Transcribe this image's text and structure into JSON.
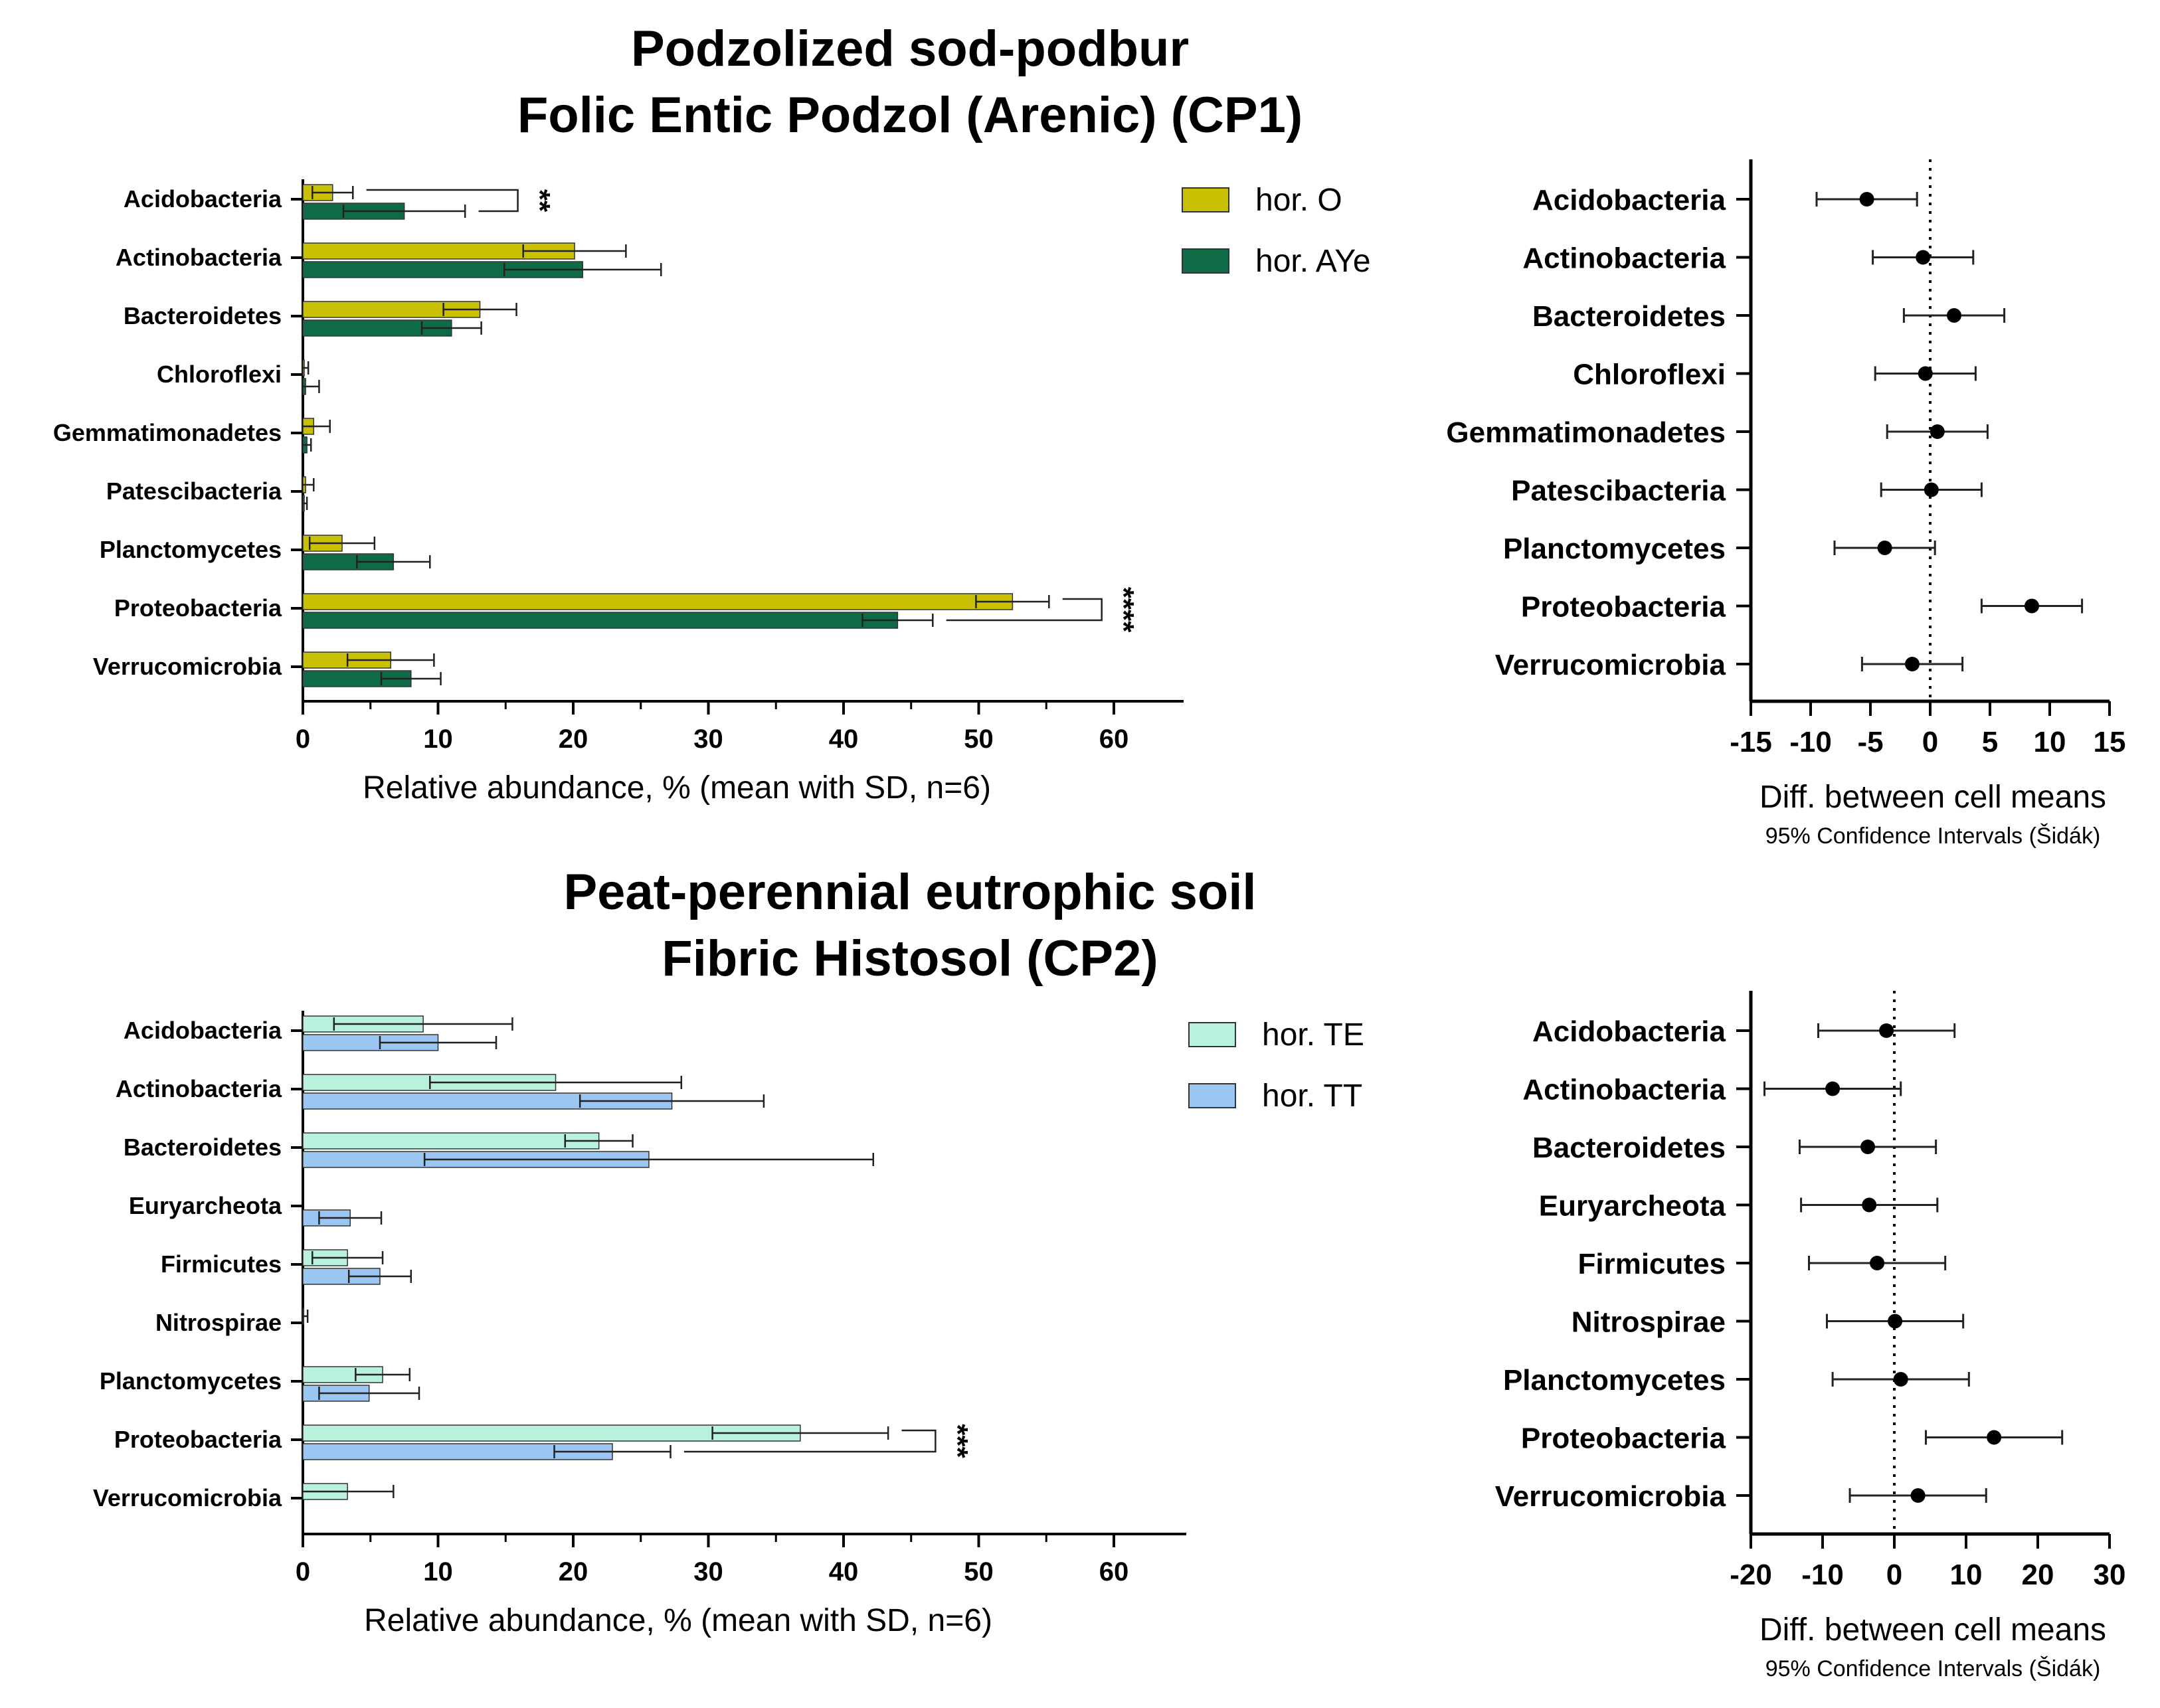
{
  "titles": {
    "top_line1": "Podzolized sod-podbur",
    "top_line2": "Folic Entic Podzol (Arenic) (CP1)",
    "bottom_line1": "Peat-perennial eutrophic soil",
    "bottom_line2": "Fibric Histosol (CP2)"
  },
  "colors": {
    "horO": "#c8c000",
    "horAYe": "#0e6b45",
    "horTE": "#b8f2dc",
    "horTT": "#9cc6f2"
  },
  "chart_data": [
    {
      "id": "cp1_bar",
      "type": "bar",
      "orientation": "horizontal",
      "categories": [
        "Acidobacteria",
        "Actinobacteria",
        "Bacteroidetes",
        "Chloroflexi",
        "Gemmatimonadetes",
        "Patescibacteria",
        "Planctomycetes",
        "Proteobacteria",
        "Verrucomicrobia"
      ],
      "series": [
        {
          "name": "hor. O",
          "color_key": "horO",
          "values": [
            2.2,
            20.1,
            13.1,
            0.1,
            0.8,
            0.2,
            2.9,
            52.5,
            6.5
          ],
          "sd": [
            1.5,
            3.8,
            2.7,
            0.3,
            1.2,
            0.6,
            2.4,
            2.7,
            3.2
          ]
        },
        {
          "name": "hor. AYe",
          "color_key": "horAYe",
          "values": [
            7.5,
            20.7,
            11.0,
            0.2,
            0.3,
            0.1,
            6.7,
            44.0,
            8.0
          ],
          "sd": [
            4.5,
            5.8,
            2.2,
            1.0,
            0.3,
            0.2,
            2.7,
            2.6,
            2.2
          ]
        }
      ],
      "significance": [
        {
          "category": "Acidobacteria",
          "label": "**"
        },
        {
          "category": "Proteobacteria",
          "label": "****"
        }
      ],
      "xlabel": "Relative abundance, % (mean with SD, n=6)",
      "xlim": [
        0,
        65
      ],
      "xticks": [
        0,
        10,
        20,
        30,
        40,
        50,
        60
      ]
    },
    {
      "id": "cp1_ci",
      "type": "scatter",
      "categories": [
        "Acidobacteria",
        "Actinobacteria",
        "Bacteroidetes",
        "Chloroflexi",
        "Gemmatimonadetes",
        "Patescibacteria",
        "Planctomycetes",
        "Proteobacteria",
        "Verrucomicrobia"
      ],
      "means": [
        -5.3,
        -0.6,
        2.0,
        -0.4,
        0.6,
        0.1,
        -3.8,
        8.5,
        -1.5
      ],
      "ci_low": [
        -9.5,
        -4.8,
        -2.2,
        -4.6,
        -3.6,
        -4.1,
        -8.0,
        4.3,
        -5.7
      ],
      "ci_high": [
        -1.1,
        3.6,
        6.2,
        3.8,
        4.8,
        4.3,
        0.4,
        12.7,
        2.7
      ],
      "xlabel": "Diff. between cell means",
      "subtitle": "95% Confidence Intervals (Šidák)",
      "xlim": [
        -15,
        15
      ],
      "xticks": [
        -15,
        -10,
        -5,
        0,
        5,
        10,
        15
      ]
    },
    {
      "id": "cp2_bar",
      "type": "bar",
      "orientation": "horizontal",
      "categories": [
        "Acidobacteria",
        "Actinobacteria",
        "Bacteroidetes",
        "Euryarcheota",
        "Firmicutes",
        "Nitrospirae",
        "Planctomycetes",
        "Proteobacteria",
        "Verrucomicrobia"
      ],
      "series": [
        {
          "name": "hor. TE",
          "color_key": "horTE",
          "values": [
            8.9,
            18.7,
            21.9,
            0,
            3.3,
            0.05,
            5.9,
            36.8,
            3.3
          ],
          "sd": [
            6.6,
            9.3,
            2.5,
            0,
            2.6,
            0.3,
            2.0,
            6.5,
            3.4
          ]
        },
        {
          "name": "hor. TT",
          "color_key": "horTT",
          "values": [
            10.0,
            27.3,
            25.6,
            3.5,
            5.7,
            0,
            4.9,
            22.9,
            0
          ],
          "sd": [
            4.3,
            6.8,
            16.6,
            2.3,
            2.3,
            0,
            3.7,
            4.3,
            0
          ]
        }
      ],
      "significance": [
        {
          "category": "Proteobacteria",
          "label": "***"
        }
      ],
      "xlabel": "Relative abundance, % (mean with SD, n=6)",
      "xlim": [
        0,
        65
      ],
      "xticks": [
        0,
        10,
        20,
        30,
        40,
        50,
        60
      ]
    },
    {
      "id": "cp2_ci",
      "type": "scatter",
      "categories": [
        "Acidobacteria",
        "Actinobacteria",
        "Bacteroidetes",
        "Euryarcheota",
        "Firmicutes",
        "Nitrospirae",
        "Planctomycetes",
        "Proteobacteria",
        "Verrucomicrobia"
      ],
      "means": [
        -1.1,
        -8.6,
        -3.7,
        -3.5,
        -2.4,
        0.1,
        0.9,
        13.9,
        3.3
      ],
      "ci_low": [
        -10.6,
        -18.1,
        -13.2,
        -13.0,
        -11.9,
        -9.4,
        -8.6,
        4.4,
        -6.2
      ],
      "ci_high": [
        8.4,
        0.9,
        5.8,
        6.0,
        7.1,
        9.6,
        10.4,
        23.4,
        12.8
      ],
      "xlabel": "Diff. between cell means",
      "subtitle": "95% Confidence Intervals (Šidák)",
      "xlim": [
        -20,
        30
      ],
      "xticks": [
        -20,
        -10,
        0,
        10,
        20,
        30
      ]
    }
  ]
}
